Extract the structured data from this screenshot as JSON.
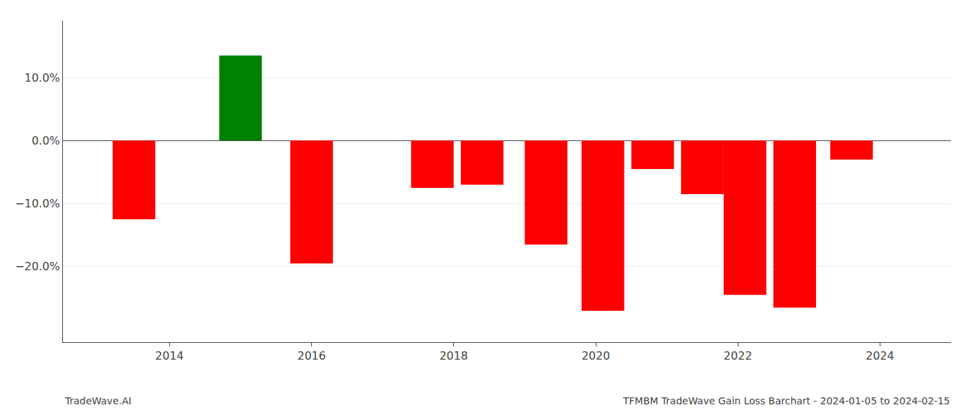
{
  "chart_data": {
    "type": "bar",
    "title": "TFMBM TradeWave Gain Loss Barchart - 2024-01-05 to 2024-02-15",
    "annotations": [
      "TradeWave.AI"
    ],
    "x": [
      2013.5,
      2015.0,
      2016.0,
      2017.7,
      2018.4,
      2019.3,
      2020.1,
      2020.8,
      2021.5,
      2022.1,
      2022.8,
      2023.6
    ],
    "values": [
      -12.5,
      13.5,
      -19.5,
      -7.5,
      -7.0,
      -16.5,
      -27.0,
      -4.5,
      -8.5,
      -24.5,
      -26.5,
      -3.0
    ],
    "colors": [
      "#ff0000",
      "#008000",
      "#ff0000",
      "#ff0000",
      "#ff0000",
      "#ff0000",
      "#ff0000",
      "#ff0000",
      "#ff0000",
      "#ff0000",
      "#ff0000",
      "#ff0000"
    ],
    "xlim": [
      2012.5,
      2025.0
    ],
    "xticks": [
      2014,
      2016,
      2018,
      2020,
      2022,
      2024
    ],
    "ylim": [
      -32,
      19
    ],
    "yticks": [
      {
        "value": 10.0,
        "label": "10.0%"
      },
      {
        "value": 0.0,
        "label": "0.0%"
      },
      {
        "value": -10.0,
        "label": "−10.0%"
      },
      {
        "value": -20.0,
        "label": "−20.0%"
      }
    ],
    "grid": true
  }
}
